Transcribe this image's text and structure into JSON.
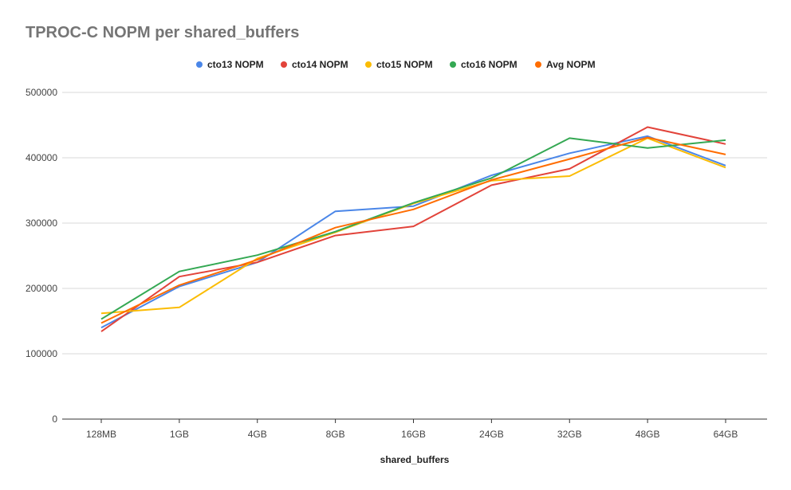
{
  "chart_data": {
    "type": "line",
    "title": "TPROC-C NOPM per shared_buffers",
    "xlabel": "shared_buffers",
    "ylabel": "",
    "categories": [
      "128MB",
      "1GB",
      "4GB",
      "8GB",
      "16GB",
      "24GB",
      "32GB",
      "48GB",
      "64GB"
    ],
    "ylim": [
      0,
      500000
    ],
    "yticks": [
      0,
      100000,
      200000,
      300000,
      400000,
      500000
    ],
    "ytick_labels": [
      "0",
      "100000",
      "200000",
      "300000",
      "400000",
      "500000"
    ],
    "grid": true,
    "legend": "top",
    "series": [
      {
        "name": "cto13 NOPM",
        "color": "#4a86e8",
        "values": [
          140000,
          203000,
          240000,
          318000,
          326000,
          373000,
          407000,
          433000,
          388000
        ]
      },
      {
        "name": "cto14 NOPM",
        "color": "#e2433a",
        "values": [
          134000,
          218000,
          240000,
          281000,
          295000,
          358000,
          383000,
          447000,
          421000
        ]
      },
      {
        "name": "cto15 NOPM",
        "color": "#fbbc04",
        "values": [
          162000,
          171000,
          246000,
          286000,
          330000,
          365000,
          372000,
          430000,
          385000
        ]
      },
      {
        "name": "cto16 NOPM",
        "color": "#34a853",
        "values": [
          153000,
          226000,
          251000,
          287000,
          331000,
          369000,
          430000,
          415000,
          427000
        ]
      },
      {
        "name": "Avg NOPM",
        "color": "#ff6d01",
        "values": [
          147000,
          205000,
          244000,
          293000,
          321000,
          366000,
          398000,
          431000,
          405000
        ]
      }
    ]
  }
}
